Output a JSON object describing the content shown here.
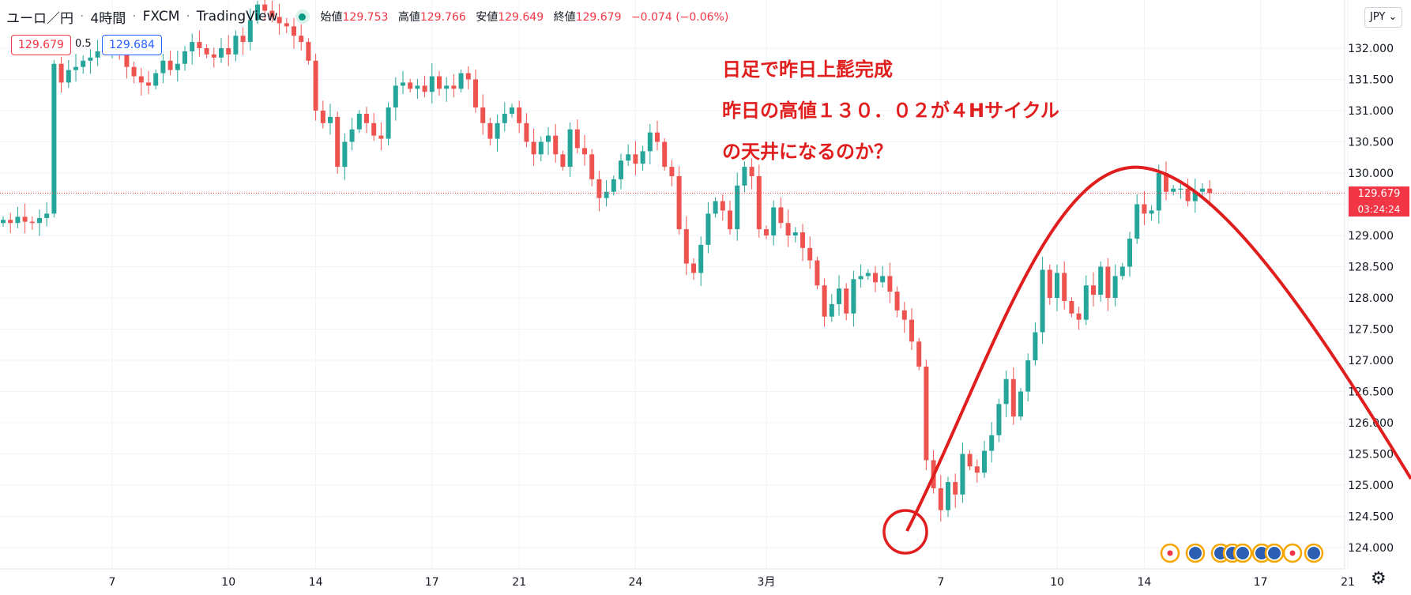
{
  "header": {
    "symbol": "ユーロ／円",
    "interval": "4時間",
    "broker": "FXCM",
    "platform": "TradingView",
    "open_label": "始値",
    "open": "129.753",
    "high_label": "高値",
    "high": "129.766",
    "low_label": "安値",
    "low": "129.649",
    "close_label": "終値",
    "close": "129.679",
    "change": "−0.074 (−0.06%)"
  },
  "trade": {
    "sell": "129.679",
    "spread": "0.5",
    "buy": "129.684"
  },
  "currency_button": "JPY",
  "price_tag": {
    "price": "129.679",
    "countdown": "03:24:24"
  },
  "annotations": [
    "日足で昨日上髭完成",
    "昨日の高値１３０．０２が４Hサイクル",
    "の天井になるのか？"
  ],
  "colors": {
    "up": "#26a69a",
    "down": "#ef5350",
    "annotation": "#e01e1e",
    "last_price": "#f23645"
  },
  "chart_data": {
    "type": "candlestick",
    "y_ticks": [
      "124.000",
      "124.500",
      "125.000",
      "125.500",
      "126.000",
      "126.500",
      "127.000",
      "127.500",
      "128.000",
      "128.500",
      "129.000",
      "129.500",
      "130.000",
      "130.500",
      "131.000",
      "131.500",
      "132.000"
    ],
    "ylim": [
      123.7,
      132.6
    ],
    "x_ticks": [
      {
        "label": "7",
        "i": 15
      },
      {
        "label": "10",
        "i": 31
      },
      {
        "label": "14",
        "i": 43
      },
      {
        "label": "17",
        "i": 59
      },
      {
        "label": "21",
        "i": 71
      },
      {
        "label": "24",
        "i": 87
      },
      {
        "label": "3月",
        "i": 105
      },
      {
        "label": "7",
        "i": 129
      },
      {
        "label": "10",
        "i": 145
      },
      {
        "label": "14",
        "i": 157
      },
      {
        "label": "17",
        "i": 173
      },
      {
        "label": "21",
        "i": 185
      }
    ],
    "bars_visible": 169,
    "closes": [
      129.25,
      129.2,
      129.3,
      129.22,
      129.2,
      129.28,
      129.35,
      131.75,
      131.45,
      131.65,
      131.7,
      131.8,
      131.85,
      131.95,
      132.0,
      132.05,
      131.9,
      131.7,
      131.55,
      131.45,
      131.4,
      131.6,
      131.8,
      131.65,
      131.75,
      131.95,
      132.1,
      132.0,
      131.9,
      131.85,
      132.0,
      131.9,
      132.2,
      132.1,
      132.45,
      132.7,
      132.6,
      132.5,
      132.4,
      132.35,
      132.2,
      132.1,
      131.8,
      131.0,
      130.8,
      130.9,
      130.1,
      130.5,
      130.7,
      130.95,
      130.8,
      130.6,
      130.55,
      131.05,
      131.4,
      131.45,
      131.35,
      131.4,
      131.3,
      131.55,
      131.35,
      131.4,
      131.35,
      131.6,
      131.5,
      131.05,
      130.8,
      130.55,
      130.8,
      130.95,
      131.05,
      130.8,
      130.5,
      130.3,
      130.5,
      130.6,
      130.3,
      130.1,
      130.7,
      130.4,
      130.3,
      129.9,
      129.6,
      129.7,
      129.9,
      130.2,
      130.3,
      130.15,
      130.35,
      130.65,
      130.5,
      130.1,
      129.95,
      129.1,
      128.55,
      128.4,
      128.85,
      129.35,
      129.55,
      129.4,
      129.1,
      129.8,
      130.1,
      129.95,
      129.1,
      129.0,
      129.45,
      129.2,
      129.0,
      129.05,
      128.8,
      128.6,
      128.2,
      127.7,
      127.9,
      128.15,
      127.75,
      128.3,
      128.35,
      128.4,
      128.25,
      128.35,
      128.1,
      127.8,
      127.65,
      127.3,
      126.9,
      125.4,
      124.95,
      124.6,
      125.05,
      124.85,
      125.5,
      125.3,
      125.2,
      125.55,
      125.8,
      126.3,
      126.7,
      126.1,
      126.5,
      127.0,
      127.45,
      128.45,
      128.0,
      128.4,
      127.95,
      127.75,
      127.65,
      128.2,
      128.05,
      128.5,
      128.0,
      128.35,
      128.5,
      128.95,
      129.5,
      129.35,
      129.4,
      130.0,
      129.7,
      129.75,
      129.75,
      129.55,
      129.7,
      129.75,
      129.68
    ],
    "overlay_curve": "hand-drawn red arc from circled low near 124.3 (Mar 7) up to a peak near 130.05 and down to about 125.2 at the right edge",
    "circle_marker": "red circle around the swing low of Mar 7"
  }
}
